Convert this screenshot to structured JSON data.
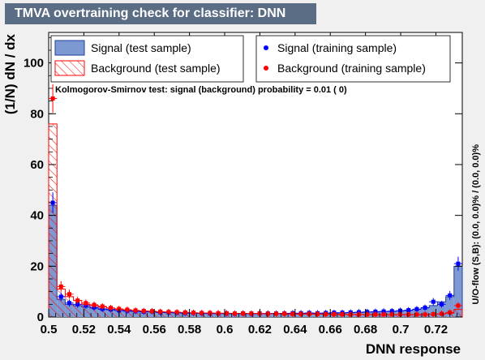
{
  "title": "TMVA overtraining check for classifier: DNN",
  "chart_data": {
    "type": "histogram",
    "xlabel": "DNN response",
    "ylabel": "(1/N) dN / dx",
    "xlim": [
      0.5,
      0.735
    ],
    "ylim": [
      0,
      112
    ],
    "xticks": [
      "0.5",
      "0.52",
      "0.54",
      "0.56",
      "0.58",
      "0.6",
      "0.62",
      "0.64",
      "0.66",
      "0.68",
      "0.7",
      "0.72"
    ],
    "yticks": [
      "0",
      "20",
      "40",
      "60",
      "80",
      "100"
    ],
    "bin_edges": [
      0.5,
      0.5047,
      0.5094,
      0.5141,
      0.5188,
      0.5235,
      0.5282,
      0.5329,
      0.5376,
      0.5423,
      0.547,
      0.5517,
      0.5564,
      0.5611,
      0.5658,
      0.5705,
      0.5752,
      0.5799,
      0.5846,
      0.5893,
      0.594,
      0.5987,
      0.6034,
      0.6081,
      0.6128,
      0.6175,
      0.6222,
      0.6269,
      0.6316,
      0.6363,
      0.641,
      0.6457,
      0.6504,
      0.6551,
      0.6598,
      0.6645,
      0.6692,
      0.6739,
      0.6786,
      0.6833,
      0.688,
      0.6927,
      0.6974,
      0.7021,
      0.7068,
      0.7115,
      0.7162,
      0.7209,
      0.7256,
      0.7303,
      0.735
    ],
    "series": [
      {
        "name": "Signal (test sample)",
        "style": "filled",
        "color": "#7d99d1",
        "values": [
          44,
          7,
          5,
          4.5,
          4,
          3.5,
          3,
          2.8,
          2.5,
          2.3,
          2.2,
          2,
          2,
          1.8,
          1.7,
          1.6,
          1.5,
          1.5,
          1.4,
          1.4,
          1.3,
          1.3,
          1.3,
          1.3,
          1.3,
          1.3,
          1.3,
          1.3,
          1.4,
          1.4,
          1.4,
          1.5,
          1.5,
          1.5,
          1.6,
          1.6,
          1.7,
          1.8,
          1.9,
          2,
          2.1,
          2.2,
          2.4,
          2.6,
          3,
          3.6,
          4.5,
          6,
          8,
          20
        ]
      },
      {
        "name": "Background (test sample)",
        "style": "hatched",
        "color": "#ff0000",
        "values": [
          76,
          11,
          8,
          6.5,
          5,
          4.5,
          4,
          3.5,
          3,
          2.8,
          2.5,
          2.3,
          2.2,
          2,
          1.9,
          1.8,
          1.7,
          1.6,
          1.6,
          1.5,
          1.5,
          1.4,
          1.4,
          1.4,
          1.3,
          1.3,
          1.3,
          1.3,
          1.2,
          1.2,
          1.2,
          1.2,
          1.1,
          1.1,
          1.1,
          1.0,
          1.0,
          1.0,
          1.0,
          1.0,
          1.0,
          1.0,
          1.0,
          1.0,
          1.0,
          1.0,
          1.1,
          1.2,
          1.5,
          3
        ]
      },
      {
        "name": "Signal (training sample)",
        "style": "points",
        "color": "#0000ff",
        "values": [
          45,
          8,
          5.5,
          5,
          4.5,
          3.8,
          3.2,
          3,
          2.6,
          2.5,
          2.3,
          2.1,
          2.2,
          1.9,
          1.8,
          1.7,
          1.6,
          1.6,
          1.5,
          1.4,
          1.4,
          1.4,
          1.3,
          1.4,
          1.3,
          1.4,
          1.4,
          1.4,
          1.4,
          1.5,
          1.5,
          1.6,
          1.5,
          1.6,
          1.7,
          1.7,
          1.8,
          1.9,
          2,
          2.1,
          2.2,
          2.3,
          2.5,
          2.7,
          3.1,
          3.7,
          6,
          5,
          8.5,
          21
        ]
      },
      {
        "name": "Background (training sample)",
        "style": "points",
        "color": "#ff0000",
        "values": [
          86,
          12,
          9,
          6.5,
          5.5,
          4.8,
          4.2,
          3.6,
          3.2,
          2.9,
          2.6,
          2.4,
          2.3,
          2.1,
          2,
          1.9,
          1.8,
          1.7,
          1.6,
          1.6,
          1.5,
          1.5,
          1.4,
          1.4,
          1.4,
          1.4,
          1.3,
          1.3,
          1.3,
          1.2,
          1.2,
          1.2,
          1.2,
          1.1,
          1.1,
          1.1,
          1.0,
          1.0,
          1.0,
          1.0,
          1.0,
          1.0,
          1.0,
          1.0,
          1.0,
          1.0,
          1.1,
          1.3,
          1.8,
          4.5
        ]
      }
    ],
    "annotations": {
      "ks_test": "Kolmogorov-Smirnov test: signal (background) probability =  0.01 (    0)",
      "overflow": "U/O-flow (S,B): (0.0, 0.0)% / (0.0, 0.0)%"
    },
    "legend_position": "top"
  }
}
